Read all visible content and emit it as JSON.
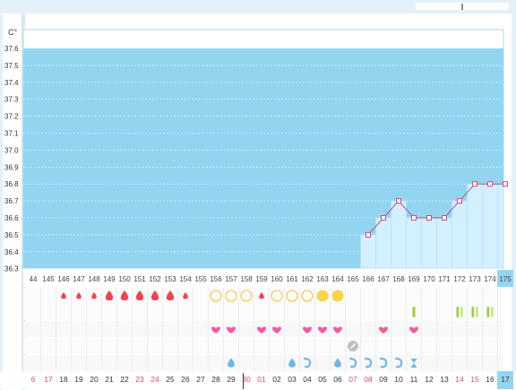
{
  "window": {
    "search_value": ""
  },
  "chart_data": {
    "type": "line",
    "y_unit": "C°",
    "ylim": [
      36.3,
      37.65
    ],
    "y_ticks": [
      "37.6",
      "37.5",
      "37.4",
      "37.3",
      "37.2",
      "37.1",
      "37.0",
      "36.9",
      "36.8",
      "36.7",
      "36.6",
      "36.5",
      "36.4",
      "36.3"
    ],
    "day_numbers": [
      "44",
      "145",
      "146",
      "147",
      "148",
      "149",
      "150",
      "151",
      "152",
      "153",
      "154",
      "155",
      "156",
      "157",
      "158",
      "159",
      "160",
      "161",
      "162",
      "163",
      "164",
      "165",
      "166",
      "167",
      "168",
      "169",
      "170",
      "171",
      "172",
      "173",
      "174",
      "175"
    ],
    "current_day": "175",
    "series": [
      {
        "values": [
          null,
          null,
          null,
          null,
          null,
          null,
          null,
          null,
          null,
          null,
          null,
          null,
          null,
          null,
          null,
          null,
          null,
          null,
          null,
          null,
          null,
          null,
          36.5,
          36.6,
          36.7,
          36.6,
          36.6,
          36.6,
          36.7,
          36.8,
          36.8,
          36.8
        ]
      }
    ],
    "fill_color": "#93d5f0",
    "line_color": "#a05a8a",
    "marker_color": "#e0457a",
    "grid": true
  },
  "symbols": {
    "menstruation": [
      "",
      "",
      "small",
      "small",
      "small",
      "large",
      "large",
      "large",
      "large",
      "large",
      "small",
      "",
      "",
      "",
      "",
      "small",
      "",
      "",
      "",
      "",
      "",
      "",
      "",
      "",
      "",
      "",
      "",
      "",
      "",
      "",
      "",
      ""
    ],
    "mucus": [
      "",
      "",
      "",
      "",
      "",
      "",
      "",
      "",
      "",
      "",
      "",
      "",
      "empty",
      "empty",
      "empty",
      "",
      "empty",
      "empty",
      "empty",
      "full",
      "full",
      "",
      "",
      "",
      "",
      "",
      "",
      "",
      "",
      "",
      "",
      ""
    ],
    "ovulation_test": [
      "",
      "",
      "",
      "",
      "",
      "",
      "",
      "",
      "",
      "",
      "",
      "",
      "",
      "",
      "",
      "",
      "",
      "",
      "",
      "",
      "",
      "",
      "",
      "",
      "",
      "single",
      "",
      "",
      "double",
      "double",
      "double",
      ""
    ],
    "intercourse": [
      "",
      "",
      "",
      "",
      "",
      "",
      "",
      "",
      "",
      "",
      "",
      "",
      "heart",
      "heart",
      "",
      "heart",
      "heart",
      "",
      "heart",
      "heart",
      "heart",
      "",
      "",
      "heart",
      "",
      "heart",
      "",
      "",
      "",
      "",
      "",
      ""
    ],
    "note": [
      "",
      "",
      "",
      "",
      "",
      "",
      "",
      "",
      "",
      "",
      "",
      "",
      "",
      "",
      "",
      "",
      "",
      "",
      "",
      "",
      "",
      "note",
      "",
      "",
      "",
      "",
      "",
      "",
      "",
      "",
      "",
      ""
    ],
    "misc": [
      "",
      "",
      "",
      "",
      "",
      "",
      "",
      "",
      "",
      "",
      "",
      "",
      "",
      "drop",
      "",
      "",
      "",
      "drop",
      "swirl",
      "",
      "drop",
      "swirl",
      "swirl",
      "swirl",
      "swirl",
      "hourglass",
      "",
      "",
      "",
      "",
      "",
      ""
    ]
  },
  "dates": [
    "6",
    "17",
    "18",
    "19",
    "20",
    "21",
    "22",
    "23",
    "24",
    "25",
    "26",
    "27",
    "28",
    "29",
    "30",
    "01",
    "02",
    "03",
    "04",
    "05",
    "06",
    "07",
    "08",
    "09",
    "10",
    "11",
    "12",
    "13",
    "14",
    "15",
    "16",
    "17"
  ],
  "date_colors": [
    "#e0457a",
    "#e0457a",
    "#333333",
    "#333333",
    "#333333",
    "#333333",
    "#333333",
    "#e0457a",
    "#e0457a",
    "#333333",
    "#333333",
    "#333333",
    "#333333",
    "#333333",
    "#e0457a",
    "#e0457a",
    "#333333",
    "#333333",
    "#333333",
    "#333333",
    "#333333",
    "#e0457a",
    "#e0457a",
    "#333333",
    "#333333",
    "#333333",
    "#333333",
    "#333333",
    "#e0457a",
    "#e0457a",
    "#333333",
    "#333333"
  ],
  "colors": {
    "blood": "#f0454e",
    "mucus_empty": "#f2cd53",
    "mucus_full": "#f8d44c",
    "heart": "#f55a9f",
    "test": "#9ccf2f",
    "test_light": "#c8e77a",
    "drop": "#6cb8e6",
    "note": "#c0c0c0"
  }
}
